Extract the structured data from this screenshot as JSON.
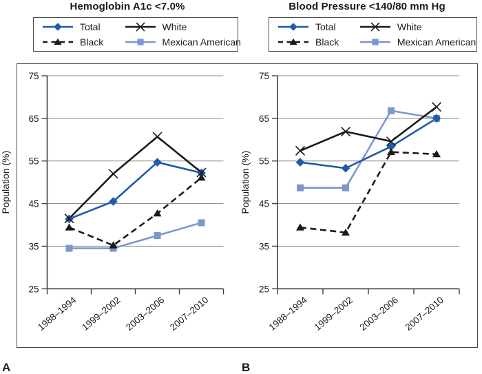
{
  "figure": {
    "panel_a_label": "A",
    "panel_b_label": "B",
    "y_axis_label": "Population (%)",
    "y_ticks": [
      25,
      35,
      45,
      55,
      65,
      75
    ],
    "categories": [
      "1988–1994",
      "1999–2002",
      "2003–2006",
      "2007–2010"
    ]
  },
  "legend": {
    "items": [
      {
        "label": "Total",
        "marker": "diamond",
        "line": "solid",
        "color": "#1e5ba8"
      },
      {
        "label": "Black",
        "marker": "triangle",
        "line": "dashed",
        "color": "#1a1a1a"
      },
      {
        "label": "White",
        "marker": "x",
        "line": "solid",
        "color": "#1a1a1a"
      },
      {
        "label": "Mexican American",
        "marker": "square",
        "line": "solid",
        "color": "#7d96ce"
      }
    ]
  },
  "chart_data": [
    {
      "type": "line",
      "title": "Hemoglobin A1c <7.0%",
      "xlabel": "",
      "ylabel": "Population (%)",
      "ylim": [
        25,
        75
      ],
      "grid": true,
      "categories": [
        "1988–1994",
        "1999–2002",
        "2003–2006",
        "2007–2010"
      ],
      "series": [
        {
          "name": "Total",
          "values": [
            41.4,
            45.5,
            54.7,
            52.2
          ]
        },
        {
          "name": "White",
          "values": [
            41.5,
            52.0,
            60.7,
            52.3
          ]
        },
        {
          "name": "Black",
          "values": [
            39.4,
            35.2,
            42.7,
            51.1
          ]
        },
        {
          "name": "Mexican American",
          "values": [
            34.5,
            34.5,
            37.5,
            40.5
          ]
        }
      ]
    },
    {
      "type": "line",
      "title": "Blood Pressure <140/80 mm Hg",
      "xlabel": "",
      "ylabel": "Population (%)",
      "ylim": [
        25,
        75
      ],
      "grid": true,
      "categories": [
        "1988–1994",
        "1999–2002",
        "2003–2006",
        "2007–2010"
      ],
      "series": [
        {
          "name": "Total",
          "values": [
            54.7,
            53.3,
            58.4,
            65.0
          ]
        },
        {
          "name": "White",
          "values": [
            57.4,
            61.9,
            59.6,
            67.7
          ]
        },
        {
          "name": "Black",
          "values": [
            39.4,
            38.2,
            57.1,
            56.6
          ]
        },
        {
          "name": "Mexican American",
          "values": [
            48.7,
            48.7,
            66.8,
            65.0
          ]
        }
      ]
    }
  ],
  "colors": {
    "total_blue": "#1e5ba8",
    "mexican_american_blue": "#7d96ce",
    "black_series": "#1a1a1a",
    "gridline": "#919191",
    "axis": "#3f3f3f",
    "box_border": "#4a4a4a",
    "text": "#1a1a1a"
  }
}
